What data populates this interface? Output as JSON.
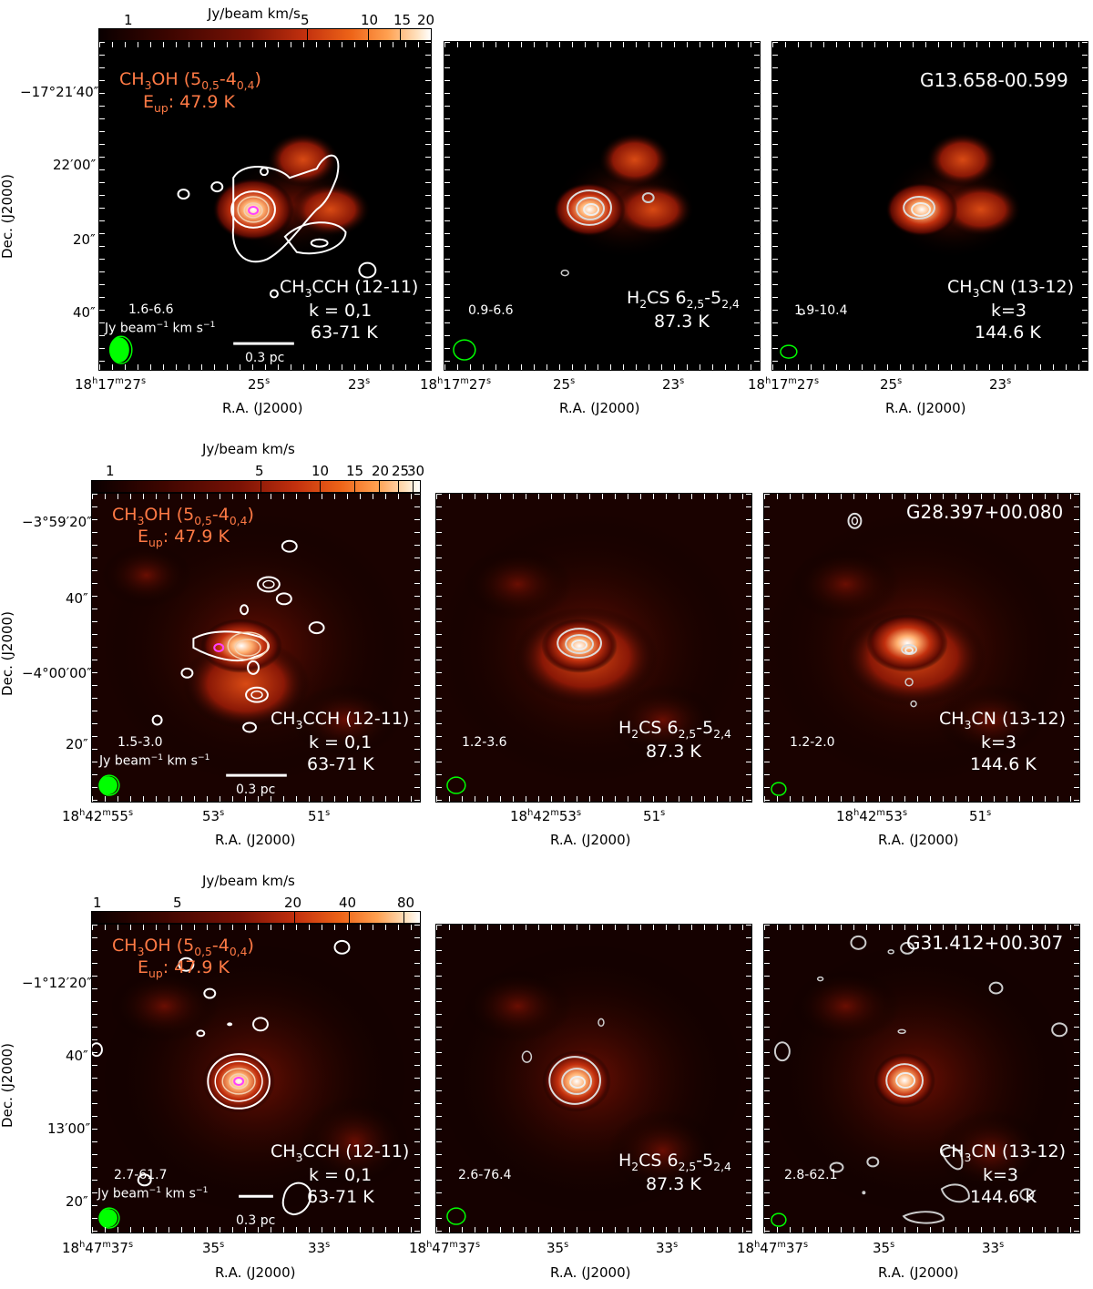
{
  "colorbar_title": "Jy/beam km/s",
  "colorbar_ticks": [
    [
      "1",
      "5",
      "10",
      "15",
      "20"
    ],
    [
      "1",
      "5",
      "10",
      "15",
      "20",
      "25",
      "30"
    ],
    [
      "1",
      "5",
      "20",
      "40",
      "80"
    ]
  ],
  "ch3oh_label": "CH3OH (50,5-40,4)",
  "eup_label": "Eup: 47.9 K",
  "ch3cch_line1": "CH3CCH (12-11)",
  "ch3cch_line2": "k = 0,1",
  "ch3cch_line3": "63-71 K",
  "h2cs_line1": "H2CS 62,5-52,4",
  "h2cs_line2": "87.3 K",
  "ch3cn_line1": "CH3CN (13-12)",
  "ch3cn_line2": "k=3",
  "ch3cn_line3": "144.6 K",
  "unit_label": "Jy beam−1 km s−1",
  "scalebar_label": "0.3 pc",
  "ra_title": "R.A. (J2000)",
  "dec_title": "Dec. (J2000)",
  "rows": [
    {
      "source": "G13.658-00.599",
      "ranges": [
        "1.6-6.6",
        "0.9-6.6",
        "1.9-10.4"
      ],
      "dec_ticks": [
        "−17°21′40″",
        "22′00″",
        "20″",
        "40″"
      ],
      "ra_ticks": [
        "18h17m27s",
        "25s",
        "23s"
      ]
    },
    {
      "source": "G28.397+00.080",
      "ranges": [
        "1.5-3.0",
        "1.2-3.6",
        "1.2-2.0"
      ],
      "dec_ticks": [
        "−3°59′20″",
        "40″",
        "−4°00′00″",
        "20″"
      ],
      "ra_ticks": [
        "18h42m55s",
        "53s",
        "51s"
      ],
      "ra_ticks_mid": [
        "18h42m53s",
        "51s"
      ]
    },
    {
      "source": "G31.412+00.307",
      "ranges": [
        "2.7-61.7",
        "2.6-76.4",
        "2.8-62.1"
      ],
      "dec_ticks": [
        "−1°12′20″",
        "40″",
        "13′00″",
        "20″"
      ],
      "ra_ticks": [
        "18h47m37s",
        "35s",
        "33s"
      ]
    }
  ]
}
